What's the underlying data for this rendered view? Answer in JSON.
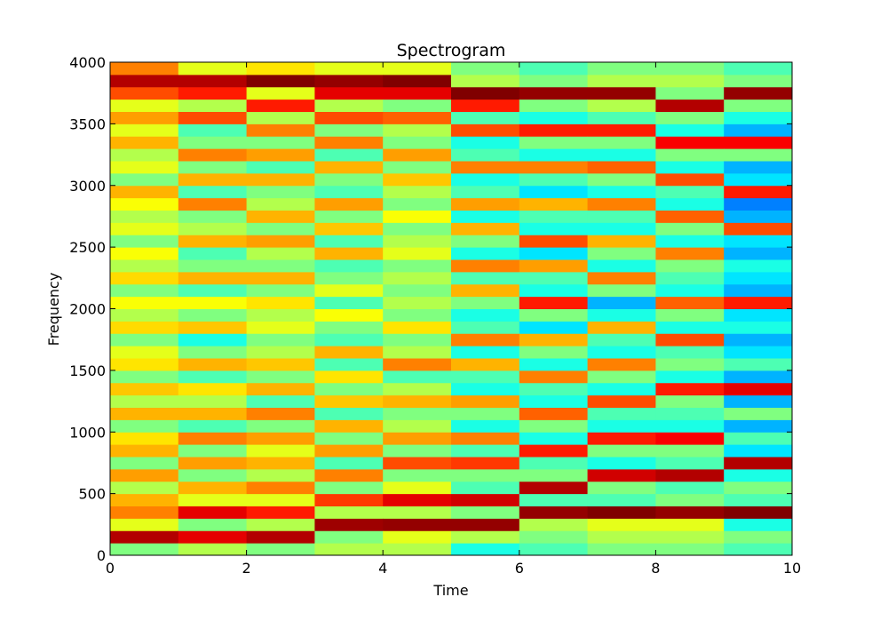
{
  "chart_data": {
    "type": "heatmap",
    "title": "Spectrogram",
    "x_label": "Time",
    "y_label": "Frequency",
    "xlim": [
      0,
      10
    ],
    "ylim": [
      0,
      4000
    ],
    "xticks": [
      0,
      2,
      4,
      6,
      8,
      10
    ],
    "yticks": [
      0,
      500,
      1000,
      1500,
      2000,
      2500,
      3000,
      3500,
      4000
    ],
    "colormap": "jet",
    "values": [
      [
        0.5,
        0.95,
        0.6,
        0.75,
        0.7,
        0.55,
        0.72,
        0.5,
        0.7,
        0.65,
        0.5,
        0.7,
        0.55,
        0.68,
        0.5,
        0.65,
        0.6,
        0.5,
        0.66,
        0.55,
        0.62,
        0.5,
        0.66,
        0.55,
        0.62,
        0.5,
        0.6,
        0.55,
        0.62,
        0.7,
        0.5,
        0.6,
        0.55,
        0.7,
        0.6,
        0.72,
        0.6,
        0.8,
        0.95,
        0.75
      ],
      [
        0.55,
        0.9,
        0.5,
        0.9,
        0.6,
        0.7,
        0.5,
        0.72,
        0.5,
        0.75,
        0.45,
        0.7,
        0.55,
        0.65,
        0.45,
        0.7,
        0.5,
        0.4,
        0.68,
        0.5,
        0.62,
        0.45,
        0.7,
        0.5,
        0.45,
        0.7,
        0.55,
        0.5,
        0.75,
        0.45,
        0.7,
        0.5,
        0.75,
        0.5,
        0.45,
        0.8,
        0.55,
        0.85,
        0.95,
        0.6
      ],
      [
        0.5,
        0.95,
        0.55,
        0.85,
        0.6,
        0.75,
        0.55,
        0.7,
        0.6,
        0.72,
        0.5,
        0.75,
        0.45,
        0.7,
        0.5,
        0.68,
        0.55,
        0.5,
        0.6,
        0.55,
        0.65,
        0.5,
        0.7,
        0.5,
        0.55,
        0.72,
        0.5,
        0.7,
        0.55,
        0.5,
        0.7,
        0.45,
        0.72,
        0.5,
        0.75,
        0.55,
        0.85,
        0.6,
        1.0,
        0.65
      ],
      [
        0.55,
        0.5,
        0.97,
        0.55,
        0.82,
        0.5,
        0.75,
        0.45,
        0.72,
        0.5,
        0.7,
        0.45,
        0.68,
        0.5,
        0.65,
        0.45,
        0.7,
        0.45,
        0.5,
        0.62,
        0.45,
        0.6,
        0.5,
        0.45,
        0.7,
        0.45,
        0.68,
        0.5,
        0.72,
        0.45,
        0.5,
        0.7,
        0.45,
        0.75,
        0.5,
        0.8,
        0.55,
        0.9,
        0.98,
        0.6
      ],
      [
        0.55,
        0.6,
        0.98,
        0.55,
        0.9,
        0.6,
        0.5,
        0.8,
        0.5,
        0.72,
        0.55,
        0.5,
        0.7,
        0.55,
        0.45,
        0.75,
        0.55,
        0.5,
        0.65,
        0.5,
        0.55,
        0.5,
        0.55,
        0.5,
        0.6,
        0.55,
        0.5,
        0.62,
        0.5,
        0.55,
        0.68,
        0.5,
        0.72,
        0.5,
        0.55,
        0.78,
        0.5,
        0.9,
        1.0,
        0.6
      ],
      [
        0.4,
        0.55,
        0.98,
        0.5,
        0.92,
        0.45,
        0.5,
        0.82,
        0.45,
        0.75,
        0.4,
        0.5,
        0.72,
        0.4,
        0.45,
        0.7,
        0.4,
        0.75,
        0.45,
        0.4,
        0.5,
        0.7,
        0.45,
        0.75,
        0.4,
        0.5,
        0.7,
        0.4,
        0.72,
        0.45,
        0.4,
        0.75,
        0.45,
        0.4,
        0.8,
        0.45,
        0.85,
        1.0,
        0.55,
        0.5
      ],
      [
        0.45,
        0.5,
        0.55,
        0.98,
        0.45,
        0.95,
        0.5,
        0.45,
        0.85,
        0.4,
        0.5,
        0.78,
        0.4,
        0.45,
        0.75,
        0.4,
        0.5,
        0.7,
        0.35,
        0.5,
        0.85,
        0.4,
        0.45,
        0.72,
        0.35,
        0.8,
        0.4,
        0.45,
        0.7,
        0.35,
        0.45,
        0.75,
        0.4,
        0.5,
        0.85,
        0.4,
        0.5,
        0.98,
        0.5,
        0.45
      ],
      [
        0.5,
        0.55,
        0.6,
        1.0,
        0.45,
        0.5,
        0.92,
        0.4,
        0.5,
        0.85,
        0.4,
        0.45,
        0.8,
        0.4,
        0.5,
        0.75,
        0.4,
        0.45,
        0.7,
        0.4,
        0.3,
        0.5,
        0.75,
        0.4,
        0.5,
        0.7,
        0.4,
        0.45,
        0.75,
        0.4,
        0.5,
        0.78,
        0.4,
        0.5,
        0.85,
        0.45,
        0.55,
        0.98,
        0.55,
        0.5
      ],
      [
        0.5,
        0.55,
        0.6,
        0.98,
        0.5,
        0.45,
        0.95,
        0.45,
        0.5,
        0.88,
        0.4,
        0.45,
        0.5,
        0.85,
        0.4,
        0.5,
        0.45,
        0.8,
        0.4,
        0.5,
        0.78,
        0.4,
        0.45,
        0.5,
        0.75,
        0.4,
        0.5,
        0.78,
        0.4,
        0.45,
        0.8,
        0.4,
        0.5,
        0.88,
        0.4,
        0.5,
        0.95,
        0.5,
        0.55,
        0.5
      ],
      [
        0.45,
        0.5,
        0.4,
        1.0,
        0.45,
        0.5,
        0.4,
        0.95,
        0.35,
        0.45,
        0.3,
        0.5,
        0.3,
        0.9,
        0.3,
        0.45,
        0.35,
        0.3,
        0.4,
        0.35,
        0.85,
        0.3,
        0.35,
        0.4,
        0.3,
        0.35,
        0.8,
        0.3,
        0.25,
        0.85,
        0.35,
        0.3,
        0.5,
        0.88,
        0.3,
        0.4,
        0.5,
        0.98,
        0.5,
        0.45
      ]
    ]
  }
}
